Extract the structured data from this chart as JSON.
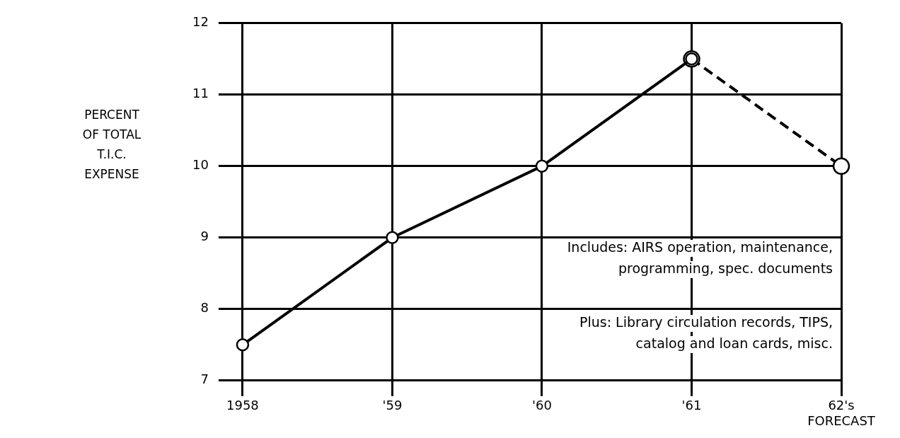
{
  "chart_data": {
    "type": "line",
    "ylabel": "PERCENT\nOF TOTAL\nT.I.C.\nEXPENSE",
    "categories": [
      "1958",
      "'59",
      "'60",
      "'61",
      "62's\nFORECAST"
    ],
    "series": [
      {
        "color": "#000000",
        "values": [
          7.5,
          9,
          10,
          11.5,
          null
        ],
        "line_style": "solid"
      },
      {
        "color": "#000000",
        "values": [
          null,
          null,
          null,
          11.5,
          10
        ],
        "line_style": "dashed"
      }
    ],
    "ylim": [
      7,
      12
    ],
    "yticks": [
      7,
      8,
      9,
      10,
      11,
      12
    ],
    "grid": true,
    "marker": "circle",
    "legend": false,
    "annotations": [
      "Includes: AIRS operation, maintenance,\nprogramming, spec. documents",
      "Plus: Library circulation records, TIPS,\ncatalog and loan cards, misc."
    ]
  }
}
